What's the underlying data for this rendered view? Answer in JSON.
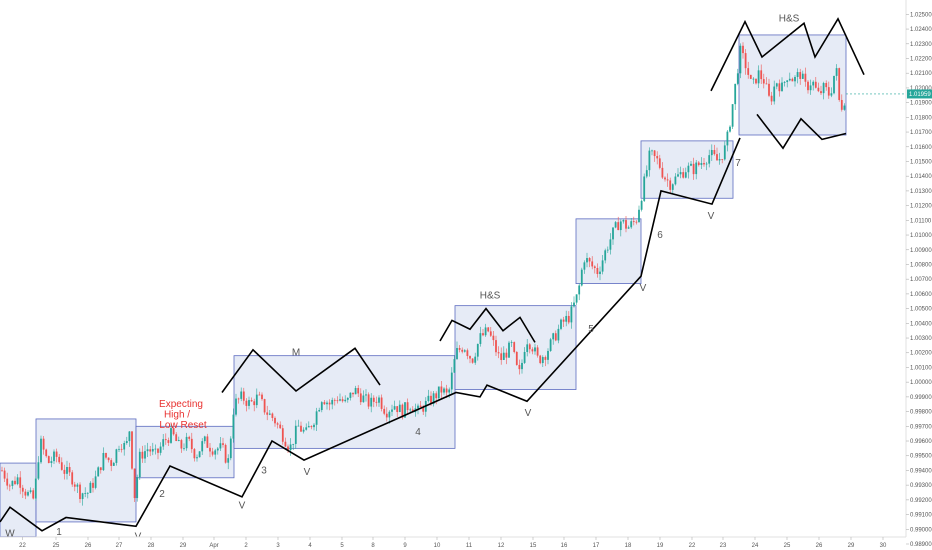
{
  "chart_data": {
    "type": "candlestick",
    "instrument_price_label": "1.01959",
    "colors": {
      "up": "#26a69a",
      "down": "#ef5350",
      "box_fill": "#dde4f3",
      "box_stroke": "#5c6bc0",
      "pattern_line": "#000000",
      "price_tag": "#26a69a",
      "annotation_red": "#e8312f",
      "annotation_gray": "#555555"
    },
    "y_range": [
      0.989,
      1.0255
    ],
    "y_ticks": [
      "1.02500",
      "1.02400",
      "1.02300",
      "1.02200",
      "1.02100",
      "1.02000",
      "1.01900",
      "1.01800",
      "1.01700",
      "1.01600",
      "1.01500",
      "1.01400",
      "1.01300",
      "1.01200",
      "1.01100",
      "1.01000",
      "1.00900",
      "1.00800",
      "1.00700",
      "1.00600",
      "1.00500",
      "1.00400",
      "1.00300",
      "1.00200",
      "1.00100",
      "1.00000",
      "0.99900",
      "0.99800",
      "0.99700",
      "0.99600",
      "0.99500",
      "0.99400",
      "0.99300",
      "0.99200",
      "0.99100",
      "0.99000",
      "0.98900"
    ],
    "x_ticks": [
      "22",
      "25",
      "26",
      "27",
      "28",
      "29",
      "Apr",
      "2",
      "3",
      "4",
      "5",
      "8",
      "9",
      "10",
      "11",
      "12",
      "15",
      "16",
      "17",
      "18",
      "19",
      "22",
      "23",
      "24",
      "25",
      "26",
      "29",
      "30"
    ],
    "x_tick_positions": [
      22.5,
      56,
      88,
      119,
      151,
      183,
      214,
      246,
      278,
      310,
      342,
      373,
      405,
      437,
      469,
      501,
      533,
      564,
      596,
      628,
      660,
      692,
      723,
      755,
      787,
      819,
      851,
      883
    ],
    "price_path": [
      [
        2,
        0.994
      ],
      [
        10,
        0.993
      ],
      [
        18,
        0.9935
      ],
      [
        26,
        0.9925
      ],
      [
        34,
        0.992
      ],
      [
        40,
        0.996
      ],
      [
        48,
        0.9945
      ],
      [
        56,
        0.995
      ],
      [
        64,
        0.994
      ],
      [
        72,
        0.9935
      ],
      [
        80,
        0.9925
      ],
      [
        88,
        0.9925
      ],
      [
        96,
        0.9935
      ],
      [
        104,
        0.995
      ],
      [
        112,
        0.9945
      ],
      [
        120,
        0.996
      ],
      [
        126,
        0.9955
      ],
      [
        130,
        0.997
      ],
      [
        134,
        0.992
      ],
      [
        140,
        0.995
      ],
      [
        148,
        0.9955
      ],
      [
        156,
        0.995
      ],
      [
        164,
        0.996
      ],
      [
        172,
        0.9965
      ],
      [
        180,
        0.9955
      ],
      [
        188,
        0.996
      ],
      [
        196,
        0.995
      ],
      [
        204,
        0.996
      ],
      [
        212,
        0.9955
      ],
      [
        222,
        0.9955
      ],
      [
        228,
        0.9945
      ],
      [
        234,
        0.9985
      ],
      [
        242,
        0.999
      ],
      [
        250,
        0.9985
      ],
      [
        258,
        0.999
      ],
      [
        266,
        0.998
      ],
      [
        274,
        0.9975
      ],
      [
        282,
        0.9965
      ],
      [
        290,
        0.9955
      ],
      [
        298,
        0.997
      ],
      [
        306,
        0.9965
      ],
      [
        314,
        0.9975
      ],
      [
        322,
        0.999
      ],
      [
        330,
        0.9985
      ],
      [
        338,
        0.999
      ],
      [
        346,
        0.9985
      ],
      [
        354,
        0.9995
      ],
      [
        362,
        0.999
      ],
      [
        370,
        0.9985
      ],
      [
        378,
        0.999
      ],
      [
        386,
        0.998
      ],
      [
        394,
        0.9985
      ],
      [
        402,
        0.998
      ],
      [
        410,
        0.9985
      ],
      [
        418,
        0.998
      ],
      [
        426,
        0.9985
      ],
      [
        434,
        0.999
      ],
      [
        442,
        0.9995
      ],
      [
        448,
        0.999
      ],
      [
        456,
        1.002
      ],
      [
        464,
        1.0025
      ],
      [
        472,
        1.0015
      ],
      [
        480,
        1.003
      ],
      [
        488,
        1.0035
      ],
      [
        494,
        1.0025
      ],
      [
        500,
        1.0015
      ],
      [
        506,
        1.002
      ],
      [
        512,
        1.0025
      ],
      [
        516,
        1.001
      ],
      [
        520,
        1.0005
      ],
      [
        526,
        1.003
      ],
      [
        532,
        1.0025
      ],
      [
        538,
        1.0015
      ],
      [
        546,
        1.002
      ],
      [
        554,
        1.003
      ],
      [
        562,
        1.004
      ],
      [
        570,
        1.0045
      ],
      [
        578,
        1.006
      ],
      [
        584,
        1.0085
      ],
      [
        590,
        1.008
      ],
      [
        598,
        1.0075
      ],
      [
        606,
        1.009
      ],
      [
        612,
        1.01
      ],
      [
        620,
        1.011
      ],
      [
        628,
        1.0105
      ],
      [
        636,
        1.011
      ],
      [
        644,
        1.0135
      ],
      [
        650,
        1.0155
      ],
      [
        658,
        1.015
      ],
      [
        664,
        1.014
      ],
      [
        670,
        1.0135
      ],
      [
        678,
        1.014
      ],
      [
        686,
        1.0145
      ],
      [
        694,
        1.0145
      ],
      [
        702,
        1.015
      ],
      [
        710,
        1.0155
      ],
      [
        718,
        1.015
      ],
      [
        726,
        1.016
      ],
      [
        734,
        1.0195
      ],
      [
        740,
        1.0225
      ],
      [
        746,
        1.0215
      ],
      [
        752,
        1.02
      ],
      [
        758,
        1.021
      ],
      [
        764,
        1.0205
      ],
      [
        770,
        1.019
      ],
      [
        776,
        1.0205
      ],
      [
        782,
        1.02
      ],
      [
        788,
        1.021
      ],
      [
        794,
        1.0205
      ],
      [
        800,
        1.021
      ],
      [
        806,
        1.02
      ],
      [
        812,
        1.0205
      ],
      [
        818,
        1.0195
      ],
      [
        824,
        1.02
      ],
      [
        830,
        1.0195
      ],
      [
        836,
        1.0215
      ],
      [
        840,
        1.0185
      ],
      [
        846,
        1.0195
      ]
    ],
    "zones": [
      {
        "x1": 0,
        "x2": 36,
        "y_top": 0.9945,
        "y_bottom": 0.9895
      },
      {
        "x1": 36,
        "x2": 136,
        "y_top": 0.9975,
        "y_bottom": 0.9905
      },
      {
        "x1": 136,
        "x2": 234,
        "y_top": 0.997,
        "y_bottom": 0.9935
      },
      {
        "x1": 234,
        "x2": 455,
        "y_top": 1.0018,
        "y_bottom": 0.9955
      },
      {
        "x1": 455,
        "x2": 576,
        "y_top": 1.0052,
        "y_bottom": 0.9995
      },
      {
        "x1": 576,
        "x2": 641,
        "y_top": 1.0111,
        "y_bottom": 1.0067
      },
      {
        "x1": 641,
        "x2": 733,
        "y_top": 1.0164,
        "y_bottom": 1.0125
      },
      {
        "x1": 739,
        "x2": 846,
        "y_top": 1.0236,
        "y_bottom": 1.0168
      }
    ],
    "pattern_lines": [
      [
        [
          0,
          0.9905
        ],
        [
          10,
          0.9915
        ],
        [
          42,
          0.9899
        ],
        [
          66,
          0.9908
        ],
        [
          136,
          0.9902
        ],
        [
          170,
          0.9943
        ],
        [
          242,
          0.9922
        ],
        [
          272,
          0.996
        ],
        [
          304,
          0.9947
        ],
        [
          456,
          0.9993
        ],
        [
          480,
          0.999
        ],
        [
          487,
          0.9998
        ],
        [
          527,
          0.9987
        ],
        [
          641,
          1.0072
        ],
        [
          661,
          1.013
        ],
        [
          712,
          1.0121
        ],
        [
          740,
          1.0166
        ]
      ],
      [
        [
          222,
          0.9993
        ],
        [
          253,
          1.0022
        ],
        [
          296,
          0.9994
        ],
        [
          355,
          1.0023
        ],
        [
          380,
          0.9998
        ]
      ],
      [
        [
          440,
          1.0028
        ],
        [
          452,
          1.0042
        ],
        [
          470,
          1.0036
        ],
        [
          486,
          1.005
        ],
        [
          503,
          1.0035
        ],
        [
          520,
          1.0044
        ],
        [
          535,
          1.0027
        ]
      ],
      [
        [
          711,
          1.0198
        ],
        [
          745,
          1.0245
        ],
        [
          762,
          1.0221
        ],
        [
          804,
          1.0244
        ],
        [
          815,
          1.0221
        ],
        [
          838,
          1.0247
        ],
        [
          864,
          1.0209
        ]
      ],
      [
        [
          757,
          1.0182
        ],
        [
          783,
          1.0159
        ],
        [
          801,
          1.0179
        ],
        [
          822,
          1.0165
        ],
        [
          846,
          1.0169
        ]
      ]
    ],
    "annotations": [
      {
        "text": "W",
        "x": 10,
        "y": 0.9895,
        "style": "gray"
      },
      {
        "text": "1",
        "x": 59,
        "y": 0.9896,
        "style": "gray"
      },
      {
        "text": "V",
        "x": 138,
        "y": 0.9893,
        "style": "gray"
      },
      {
        "text": "2",
        "x": 162,
        "y": 0.9922,
        "style": "gray"
      },
      {
        "text": "Expecting",
        "x": 181,
        "y": 0.9983,
        "style": "red"
      },
      {
        "text": "High /",
        "x": 177,
        "y": 0.9976,
        "style": "red"
      },
      {
        "text": "Low Reset",
        "x": 183,
        "y": 0.9969,
        "style": "red"
      },
      {
        "text": "V",
        "x": 242,
        "y": 0.9914,
        "style": "gray"
      },
      {
        "text": "3",
        "x": 264,
        "y": 0.9938,
        "style": "gray"
      },
      {
        "text": "V",
        "x": 307,
        "y": 0.9937,
        "style": "gray"
      },
      {
        "text": "M",
        "x": 296,
        "y": 1.0018,
        "style": "gray"
      },
      {
        "text": "4",
        "x": 418,
        "y": 0.9964,
        "style": "gray"
      },
      {
        "text": "H&S",
        "x": 490,
        "y": 1.0057,
        "style": "gray"
      },
      {
        "text": "V",
        "x": 528,
        "y": 0.9977,
        "style": "gray"
      },
      {
        "text": "5",
        "x": 591,
        "y": 1.0034,
        "style": "gray"
      },
      {
        "text": "V",
        "x": 643,
        "y": 1.0062,
        "style": "gray"
      },
      {
        "text": "6",
        "x": 660,
        "y": 1.0098,
        "style": "gray"
      },
      {
        "text": "V",
        "x": 711,
        "y": 1.0111,
        "style": "gray"
      },
      {
        "text": "7",
        "x": 738,
        "y": 1.0147,
        "style": "gray"
      },
      {
        "text": "H&S",
        "x": 789,
        "y": 1.0245,
        "style": "gray"
      }
    ]
  }
}
